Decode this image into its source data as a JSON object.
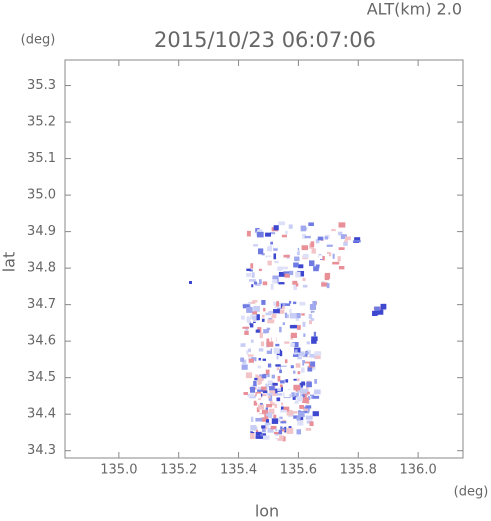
{
  "chart_data": {
    "type": "radar-map",
    "title": "2015/10/23 06:07:06",
    "subtitle": "ALT(km) 2.0",
    "x_label": "lon",
    "y_label": "lat",
    "x_unit": "(deg)",
    "y_unit": "(deg)",
    "xlim": [
      134.82,
      136.15
    ],
    "ylim": [
      34.28,
      35.37
    ],
    "xticks": [
      {
        "value": 135,
        "label": "135.0"
      },
      135.2,
      135.4,
      135.6,
      135.8,
      {
        "value": 136,
        "label": "136.0"
      }
    ],
    "yticks": [
      {
        "value": 34.3,
        "label": "34.3"
      },
      34.4,
      34.5,
      34.6,
      34.7,
      34.8,
      34.9,
      {
        "value": 35,
        "label": "35.0"
      },
      35.1,
      35.2,
      35.3
    ]
  }
}
